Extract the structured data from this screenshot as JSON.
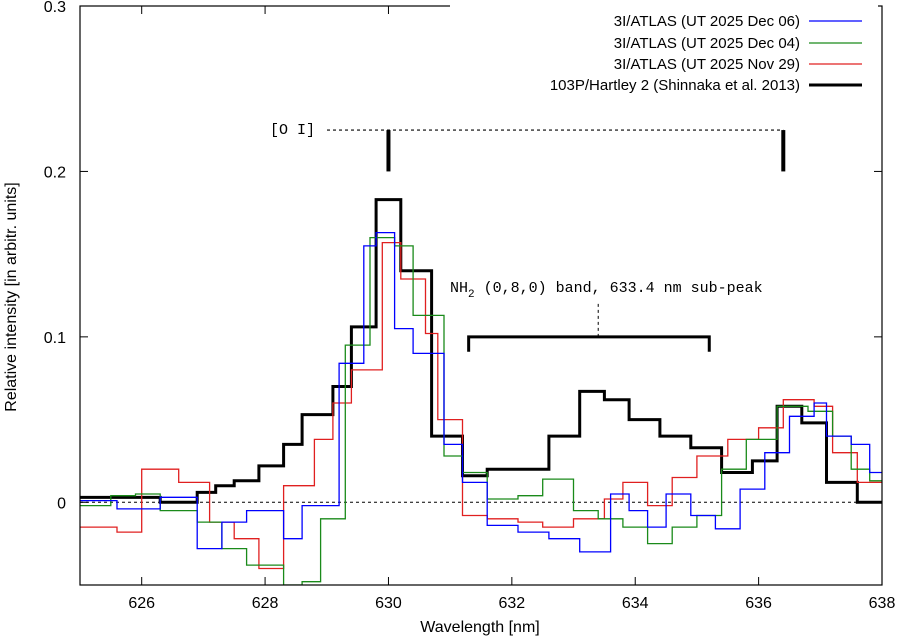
{
  "chart_data": {
    "type": "line",
    "xlabel": "Wavelength [nm]",
    "ylabel": "Relative intensity [in arbitr. units]",
    "xlim": [
      625,
      638
    ],
    "ylim": [
      -0.05,
      0.3
    ],
    "x_ticks": [
      626,
      628,
      630,
      632,
      634,
      636,
      638
    ],
    "x_tick_labels": [
      "626",
      "628",
      "630",
      "632",
      "634",
      "636",
      "638"
    ],
    "y_ticks": [
      0,
      0.1,
      0.2,
      0.3
    ],
    "y_tick_labels": [
      "0",
      "0.1",
      "0.2",
      "0.3"
    ],
    "zero_line": 0,
    "legend_position": "top-right",
    "series": [
      {
        "name": "3I/ATLAS (UT 2025 Dec 06)",
        "color": "#0000ff",
        "line_width": 1.3,
        "steps": [
          [
            625.0,
            0.001
          ],
          [
            625.6,
            -0.004
          ],
          [
            626.3,
            0.003
          ],
          [
            626.9,
            -0.028
          ],
          [
            627.3,
            -0.012
          ],
          [
            627.7,
            -0.005
          ],
          [
            628.3,
            -0.022
          ],
          [
            628.6,
            -0.002
          ],
          [
            629.2,
            0.084
          ],
          [
            629.6,
            0.155
          ],
          [
            629.8,
            0.163
          ],
          [
            630.1,
            0.105
          ],
          [
            630.4,
            0.09
          ],
          [
            630.9,
            0.035
          ],
          [
            631.2,
            0.012
          ],
          [
            631.6,
            -0.014
          ],
          [
            632.1,
            -0.018
          ],
          [
            632.6,
            -0.022
          ],
          [
            633.1,
            -0.03
          ],
          [
            633.6,
            0.005
          ],
          [
            633.9,
            -0.005
          ],
          [
            634.2,
            -0.015
          ],
          [
            634.5,
            0.005
          ],
          [
            634.9,
            -0.008
          ],
          [
            635.3,
            -0.016
          ],
          [
            635.7,
            0.008
          ],
          [
            636.1,
            0.03
          ],
          [
            636.5,
            0.052
          ],
          [
            636.9,
            0.06
          ],
          [
            637.1,
            0.04
          ],
          [
            637.5,
            0.035
          ],
          [
            637.8,
            0.018
          ],
          [
            638.0,
            0.018
          ]
        ]
      },
      {
        "name": "3I/ATLAS (UT 2025 Dec 04)",
        "color": "#1a8a1a",
        "line_width": 1.3,
        "steps": [
          [
            625.0,
            -0.002
          ],
          [
            625.5,
            0.004
          ],
          [
            625.9,
            0.005
          ],
          [
            626.3,
            -0.005
          ],
          [
            626.9,
            -0.012
          ],
          [
            627.3,
            -0.028
          ],
          [
            627.7,
            -0.038
          ],
          [
            628.3,
            -0.05
          ],
          [
            628.6,
            -0.048
          ],
          [
            628.9,
            -0.01
          ],
          [
            629.3,
            0.095
          ],
          [
            629.7,
            0.16
          ],
          [
            630.1,
            0.155
          ],
          [
            630.4,
            0.113
          ],
          [
            630.9,
            0.028
          ],
          [
            631.2,
            0.018
          ],
          [
            631.6,
            0.002
          ],
          [
            632.1,
            0.004
          ],
          [
            632.5,
            0.014
          ],
          [
            633.0,
            -0.005
          ],
          [
            633.4,
            -0.01
          ],
          [
            633.8,
            -0.015
          ],
          [
            634.2,
            -0.025
          ],
          [
            634.6,
            -0.015
          ],
          [
            635.0,
            -0.008
          ],
          [
            635.4,
            0.02
          ],
          [
            635.8,
            0.038
          ],
          [
            636.3,
            0.058
          ],
          [
            636.8,
            0.055
          ],
          [
            637.2,
            0.04
          ],
          [
            637.5,
            0.02
          ],
          [
            637.8,
            0.013
          ],
          [
            638.0,
            0.013
          ]
        ]
      },
      {
        "name": "3I/ATLAS (UT 2025 Nov 29)",
        "color": "#e02020",
        "line_width": 1.3,
        "steps": [
          [
            625.0,
            -0.015
          ],
          [
            625.6,
            -0.018
          ],
          [
            626.0,
            0.02
          ],
          [
            626.6,
            0.012
          ],
          [
            627.1,
            -0.012
          ],
          [
            627.5,
            -0.022
          ],
          [
            627.9,
            -0.04
          ],
          [
            628.3,
            0.01
          ],
          [
            628.8,
            0.038
          ],
          [
            629.1,
            0.06
          ],
          [
            629.4,
            0.08
          ],
          [
            629.9,
            0.157
          ],
          [
            630.2,
            0.135
          ],
          [
            630.6,
            0.102
          ],
          [
            630.8,
            0.05
          ],
          [
            631.2,
            -0.008
          ],
          [
            631.6,
            -0.01
          ],
          [
            632.1,
            -0.012
          ],
          [
            632.5,
            -0.015
          ],
          [
            633.0,
            -0.01
          ],
          [
            633.5,
            0.002
          ],
          [
            633.8,
            0.012
          ],
          [
            634.2,
            -0.002
          ],
          [
            634.6,
            0.015
          ],
          [
            635.0,
            0.028
          ],
          [
            635.5,
            0.038
          ],
          [
            636.0,
            0.045
          ],
          [
            636.4,
            0.062
          ],
          [
            636.9,
            0.058
          ],
          [
            637.2,
            0.03
          ],
          [
            637.6,
            0.012
          ],
          [
            638.0,
            0.012
          ]
        ]
      },
      {
        "name": "103P/Hartley 2 (Shinnaka et al. 2013)",
        "color": "#000000",
        "line_width": 3,
        "steps": [
          [
            625.0,
            0.003
          ],
          [
            626.3,
            0.0
          ],
          [
            626.9,
            0.006
          ],
          [
            627.2,
            0.01
          ],
          [
            627.5,
            0.013
          ],
          [
            627.9,
            0.022
          ],
          [
            628.3,
            0.035
          ],
          [
            628.6,
            0.053
          ],
          [
            629.1,
            0.07
          ],
          [
            629.4,
            0.106
          ],
          [
            629.8,
            0.183
          ],
          [
            630.2,
            0.14
          ],
          [
            630.7,
            0.04
          ],
          [
            631.2,
            0.016
          ],
          [
            631.6,
            0.02
          ],
          [
            632.1,
            0.02
          ],
          [
            632.6,
            0.04
          ],
          [
            633.1,
            0.067
          ],
          [
            633.5,
            0.062
          ],
          [
            633.9,
            0.05
          ],
          [
            634.4,
            0.04
          ],
          [
            634.9,
            0.033
          ],
          [
            635.4,
            0.018
          ],
          [
            635.9,
            0.025
          ],
          [
            636.3,
            0.058
          ],
          [
            636.7,
            0.048
          ],
          [
            637.1,
            0.012
          ],
          [
            637.6,
            0.0
          ],
          [
            638.0,
            0.0
          ]
        ]
      }
    ],
    "annotations": [
      {
        "id": "oi",
        "label": "[O I]",
        "y": 0.225,
        "tick_positions": [
          630.0,
          636.4
        ],
        "tick_bottom": 0.2
      },
      {
        "id": "nh2",
        "label_main": "NH",
        "label_sub": "2",
        "label_rest": " (0,8,0) band, 633.4 nm sub-peak",
        "bracket_x": [
          631.3,
          635.2
        ],
        "bracket_y": 0.1,
        "bracket_leg_bottom": 0.091,
        "pointer_x": 633.4,
        "pointer_top": 0.12
      }
    ]
  }
}
